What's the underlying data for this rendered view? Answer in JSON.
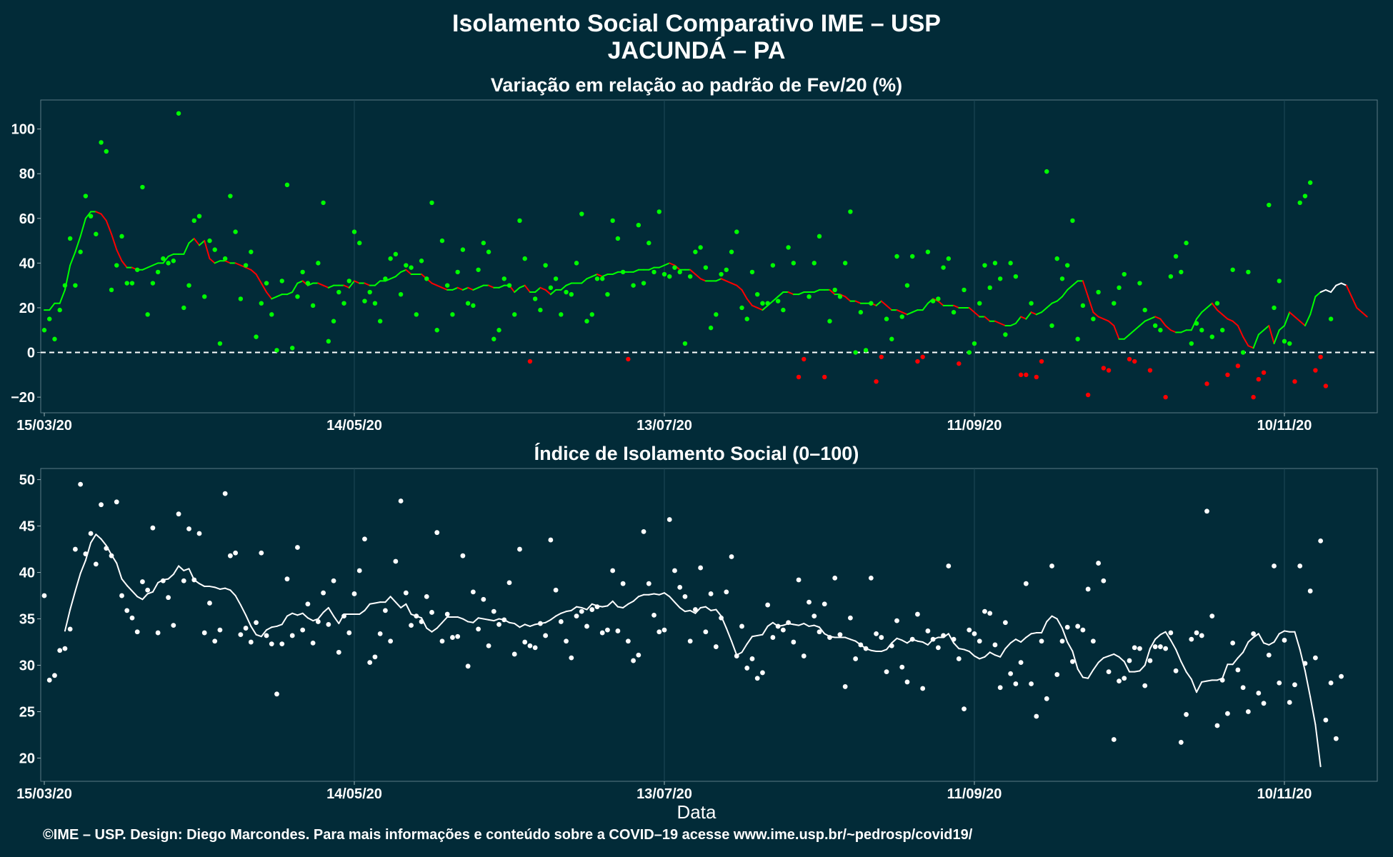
{
  "figure": {
    "title_line1": "Isolamento Social Comparativo IME – USP",
    "title_line2": "JACUNDÁ – PA",
    "xlabel": "Data",
    "footer": "©IME – USP. Design: Diego Marcondes. Para mais informações e conteúdo sobre a COVID–19 acesse www.ime.usp.br/~pedrosp/covid19/"
  },
  "chart_data": [
    {
      "type": "scatter",
      "title": "Variação em relação ao padrão de Fev/20 (%)",
      "x_start": "15/03/20",
      "x_ticks": [
        "15/03/20",
        "14/05/20",
        "13/07/20",
        "11/09/20",
        "10/11/20"
      ],
      "x_tick_day_offsets": [
        0,
        60,
        120,
        180,
        240
      ],
      "ylim": [
        -27,
        113
      ],
      "y_ticks": [
        -20,
        0,
        20,
        40,
        60,
        80,
        100
      ],
      "reference_line": 0,
      "grid": true,
      "colors": {
        "positive": "#00ff00",
        "negative": "#ff0000",
        "line_up": "#00ff00",
        "line_down": "#ff0000",
        "line_last": "#ffffff",
        "background": "#022b38"
      },
      "series": [
        {
          "kind": "points",
          "values": [
            10,
            15,
            6,
            19,
            30,
            51,
            30,
            45,
            70,
            61,
            53,
            94,
            90,
            28,
            39,
            52,
            31,
            31,
            37,
            74,
            17,
            31,
            36,
            42,
            40,
            41,
            107,
            20,
            30,
            59,
            61,
            25,
            50,
            46,
            4,
            42,
            70,
            54,
            24,
            39,
            45,
            7,
            22,
            31,
            17,
            1,
            32,
            75,
            2,
            25,
            36,
            31,
            21,
            40,
            67,
            5,
            14,
            27,
            22,
            32,
            54,
            49,
            23,
            27,
            22,
            14,
            33,
            42,
            44,
            26,
            39,
            38,
            17,
            41,
            33,
            67,
            10,
            50,
            30,
            17,
            36,
            46,
            22,
            21,
            37,
            49,
            45,
            6,
            10,
            33,
            30,
            17,
            59,
            42,
            -4,
            24,
            19,
            39,
            29,
            33,
            17,
            27,
            26,
            40,
            62,
            14,
            17,
            33,
            33,
            26,
            59,
            51,
            36,
            -3,
            30,
            57,
            31,
            49,
            36,
            63,
            35,
            34,
            38,
            36,
            4,
            34,
            45,
            47,
            38,
            11,
            17,
            35,
            37,
            45,
            54,
            20,
            15,
            36,
            26,
            22,
            22,
            39,
            23,
            19,
            47,
            40,
            -11,
            -3,
            25,
            40,
            52,
            -11,
            14,
            28,
            25,
            40,
            63,
            0,
            18,
            1,
            22,
            -13,
            -2,
            15,
            6,
            43,
            16,
            30,
            43,
            -4,
            -2,
            45,
            23,
            24,
            38,
            42,
            18,
            -5,
            28,
            0,
            4,
            22,
            39,
            29,
            40,
            33,
            8,
            40,
            34,
            -10,
            -10,
            22,
            -11,
            -4,
            81,
            12,
            42,
            33,
            39,
            59,
            6,
            21,
            -19,
            15,
            27,
            -7,
            -8,
            22,
            29,
            35,
            -3,
            -4,
            31,
            19,
            -8,
            12,
            10,
            -20,
            34,
            43,
            36,
            49,
            4,
            13,
            10,
            -14,
            7,
            22,
            10,
            -10,
            37,
            -6,
            0,
            36,
            -20,
            -12,
            -9,
            66,
            20,
            32,
            5,
            4,
            -13,
            67,
            70,
            76,
            -8,
            -2,
            -15,
            15
          ]
        },
        {
          "kind": "moving_average",
          "values": [
            19,
            19,
            22,
            22,
            28,
            39,
            45,
            52,
            60,
            63,
            63,
            62,
            59,
            53,
            46,
            41,
            38,
            38,
            37,
            37,
            38,
            39,
            40,
            40,
            43,
            44,
            44,
            44,
            49,
            51,
            48,
            50,
            42,
            40,
            41,
            41,
            40,
            40,
            39,
            38,
            37,
            35,
            31,
            27,
            24,
            25,
            26,
            26,
            27,
            31,
            32,
            30,
            31,
            31,
            30,
            29,
            30,
            30,
            30,
            29,
            32,
            31,
            31,
            30,
            30,
            32,
            32,
            33,
            34,
            36,
            37,
            35,
            35,
            35,
            33,
            31,
            30,
            29,
            28,
            28,
            29,
            28,
            29,
            28,
            29,
            30,
            30,
            29,
            29,
            30,
            30,
            27,
            29,
            30,
            27,
            27,
            29,
            28,
            26,
            28,
            28,
            30,
            31,
            31,
            31,
            33,
            34,
            35,
            34,
            35,
            35,
            36,
            36,
            36,
            36,
            37,
            37,
            37,
            38,
            38,
            39,
            40,
            39,
            37,
            37,
            37,
            35,
            33,
            32,
            32,
            32,
            33,
            32,
            31,
            30,
            28,
            24,
            21,
            20,
            19,
            21,
            23,
            25,
            27,
            27,
            26,
            26,
            27,
            27,
            27,
            28,
            28,
            28,
            26,
            26,
            25,
            23,
            23,
            22,
            22,
            22,
            21,
            23,
            21,
            19,
            19,
            18,
            17,
            18,
            19,
            19,
            22,
            24,
            23,
            21,
            21,
            21,
            20,
            20,
            20,
            18,
            16,
            16,
            14,
            14,
            13,
            12,
            12,
            13,
            16,
            15,
            18,
            17,
            18,
            20,
            22,
            23,
            25,
            28,
            30,
            32,
            32,
            25,
            18,
            16,
            15,
            14,
            12,
            6,
            6,
            8,
            10,
            12,
            14,
            15,
            16,
            15,
            12,
            10,
            9,
            9,
            10,
            10,
            15,
            18,
            20,
            22,
            19,
            17,
            15,
            14,
            12,
            7,
            3,
            2,
            8,
            10,
            12,
            4,
            10,
            12,
            18,
            16,
            14,
            12,
            17,
            25,
            27,
            28,
            27,
            30,
            31,
            30,
            25,
            20,
            18,
            16
          ]
        }
      ]
    },
    {
      "type": "scatter",
      "title": "Índice de Isolamento Social (0–100)",
      "x_start": "15/03/20",
      "x_ticks": [
        "15/03/20",
        "14/05/20",
        "13/07/20",
        "11/09/20",
        "10/11/20"
      ],
      "x_tick_day_offsets": [
        0,
        60,
        120,
        180,
        240
      ],
      "ylim": [
        17.5,
        51.2
      ],
      "y_ticks": [
        20,
        25,
        30,
        35,
        40,
        45,
        50
      ],
      "grid": true,
      "colors": {
        "points": "#ffffff",
        "line": "#ffffff",
        "background": "#022b38"
      },
      "series": [
        {
          "kind": "points",
          "values": [
            37.5,
            28.4,
            28.9,
            31.6,
            31.8,
            33.9,
            42.5,
            49.5,
            42.0,
            44.2,
            40.9,
            47.3,
            42.6,
            41.8,
            47.6,
            37.5,
            35.9,
            35.1,
            33.6,
            39.0,
            38.1,
            44.8,
            33.5,
            39.1,
            37.3,
            34.3,
            46.3,
            39.1,
            44.7,
            39.2,
            44.2,
            33.5,
            36.7,
            32.6,
            33.8,
            48.5,
            41.8,
            42.1,
            33.3,
            34.0,
            32.5,
            34.6,
            42.1,
            33.2,
            32.3,
            26.9,
            32.3,
            39.3,
            33.2,
            42.7,
            33.8,
            36.6,
            32.4,
            34.7,
            37.8,
            34.4,
            39.1,
            31.4,
            35.3,
            33.5,
            37.7,
            40.2,
            43.6,
            30.3,
            30.9,
            33.4,
            35.9,
            32.6,
            41.2,
            47.7,
            37.8,
            34.3,
            35.3,
            34.7,
            37.4,
            35.7,
            44.3,
            32.6,
            35.5,
            33.0,
            33.1,
            41.8,
            29.9,
            37.9,
            33.9,
            37.1,
            32.1,
            35.8,
            34.4,
            34.9,
            38.9,
            31.2,
            42.5,
            32.5,
            32.1,
            31.9,
            34.5,
            33.2,
            43.5,
            38.1,
            34.7,
            32.6,
            30.8,
            35.3,
            35.8,
            34.2,
            36.0,
            36.3,
            33.5,
            33.8,
            40.2,
            33.7,
            38.8,
            32.6,
            30.5,
            31.1,
            44.4,
            38.8,
            35.4,
            33.6,
            33.8,
            45.7,
            40.2,
            38.4,
            37.4,
            32.6,
            36.0,
            40.5,
            33.6,
            37.7,
            32.0,
            35.1,
            37.9,
            41.7,
            31.0,
            34.2,
            29.7,
            30.7,
            28.6,
            29.2,
            36.5,
            33.0,
            34.2,
            33.8,
            34.6,
            32.5,
            39.2,
            31.0,
            36.8,
            35.3,
            33.6,
            36.6,
            33.0,
            39.4,
            33.3,
            27.7,
            35.1,
            30.7,
            32.2,
            31.8,
            39.4,
            33.4,
            33.0,
            29.3,
            32.1,
            34.8,
            29.8,
            28.2,
            32.8,
            35.5,
            27.5,
            33.7,
            32.8,
            31.9,
            33.2,
            40.7,
            32.8,
            30.7,
            25.3,
            33.8,
            33.4,
            32.6,
            35.8,
            35.6,
            32.2,
            27.6,
            34.6,
            29.1,
            28.0,
            30.3,
            38.8,
            28.0,
            24.5,
            32.6,
            26.4,
            40.7,
            29.0,
            32.6,
            34.1,
            30.4,
            34.2,
            33.8,
            38.2,
            32.6,
            41.0,
            39.1,
            29.3,
            22.0,
            28.3,
            28.6,
            30.5,
            31.9,
            31.8,
            27.8,
            30.5,
            32.0,
            32.0,
            31.8,
            33.5,
            29.4,
            21.7,
            24.7,
            32.8,
            33.5,
            33.2,
            46.6,
            35.3,
            23.5,
            28.4,
            24.8,
            32.4,
            29.5,
            27.6,
            25.0,
            33.4,
            27.0,
            25.9,
            31.1,
            40.7,
            28.1,
            32.7,
            26.0,
            27.9,
            40.7,
            30.2,
            38.0,
            30.8,
            43.4,
            24.1,
            28.1,
            22.1,
            28.8
          ]
        },
        {
          "kind": "moving_average",
          "values": [
            null,
            null,
            null,
            null,
            33.7,
            36.0,
            38.0,
            39.9,
            41.3,
            43.2,
            44.1,
            43.6,
            42.9,
            41.9,
            41.0,
            39.3,
            38.6,
            38.0,
            37.4,
            37.1,
            37.7,
            37.9,
            38.9,
            39.2,
            39.3,
            39.8,
            40.7,
            40.2,
            40.4,
            39.2,
            38.8,
            38.5,
            38.5,
            38.4,
            38.2,
            38.3,
            38.1,
            37.5,
            36.5,
            35.4,
            34.2,
            33.3,
            33.1,
            33.8,
            34.1,
            34.2,
            34.4,
            35.3,
            35.6,
            35.4,
            35.6,
            35.1,
            34.8,
            35.0,
            35.7,
            36.2,
            35.3,
            34.5,
            35.5,
            35.5,
            35.5,
            35.5,
            35.9,
            36.6,
            36.7,
            36.8,
            36.8,
            37.4,
            36.8,
            36.2,
            36.6,
            35.5,
            35.3,
            35.1,
            34.0,
            33.6,
            34.0,
            34.6,
            35.2,
            35.2,
            35.2,
            35.0,
            34.7,
            34.6,
            35.1,
            35.0,
            34.9,
            34.8,
            35.0,
            34.9,
            34.6,
            34.5,
            34.1,
            34.4,
            34.2,
            34.4,
            34.5,
            34.6,
            34.9,
            35.3,
            35.6,
            35.8,
            35.9,
            36.3,
            36.2,
            36.0,
            36.6,
            36.4,
            36.3,
            36.4,
            36.9,
            36.3,
            36.2,
            36.6,
            36.9,
            37.4,
            37.6,
            37.6,
            37.7,
            37.6,
            37.8,
            37.4,
            36.8,
            36.2,
            35.8,
            35.9,
            35.6,
            36.2,
            36.3,
            35.9,
            36.0,
            35.3,
            34.0,
            32.6,
            31.1,
            31.4,
            32.3,
            33.1,
            33.2,
            33.3,
            34.2,
            34.6,
            34.2,
            34.3,
            34.5,
            34.4,
            34.3,
            34.5,
            34.2,
            34.3,
            34.1,
            33.4,
            33.1,
            33.0,
            33.0,
            33.0,
            32.8,
            32.6,
            32.2,
            31.8,
            31.6,
            31.5,
            31.5,
            31.7,
            32.4,
            32.9,
            32.7,
            32.4,
            32.8,
            32.6,
            32.5,
            32.2,
            32.8,
            33.0,
            33.0,
            33.4,
            32.4,
            31.8,
            31.7,
            31.5,
            31.0,
            30.7,
            30.9,
            31.4,
            31.1,
            30.9,
            31.8,
            32.4,
            32.8,
            32.5,
            33.0,
            33.4,
            33.5,
            33.5,
            34.7,
            35.3,
            35.0,
            34.0,
            32.5,
            31.5,
            29.6,
            28.7,
            28.6,
            29.5,
            30.3,
            30.8,
            31.0,
            31.2,
            30.9,
            30.4,
            29.3,
            29.3,
            29.4,
            30.0,
            31.8,
            32.8,
            33.3,
            33.6,
            32.7,
            31.7,
            30.4,
            29.3,
            28.5,
            27.1,
            28.2,
            28.3,
            28.4,
            28.4,
            28.6,
            30.1,
            30.1,
            30.8,
            31.4,
            32.5,
            33.0,
            33.4,
            32.4,
            32.2,
            32.5,
            33.4,
            33.7,
            33.6,
            33.6,
            31.7,
            29.4,
            26.6,
            23.6,
            19.1
          ]
        }
      ]
    }
  ]
}
